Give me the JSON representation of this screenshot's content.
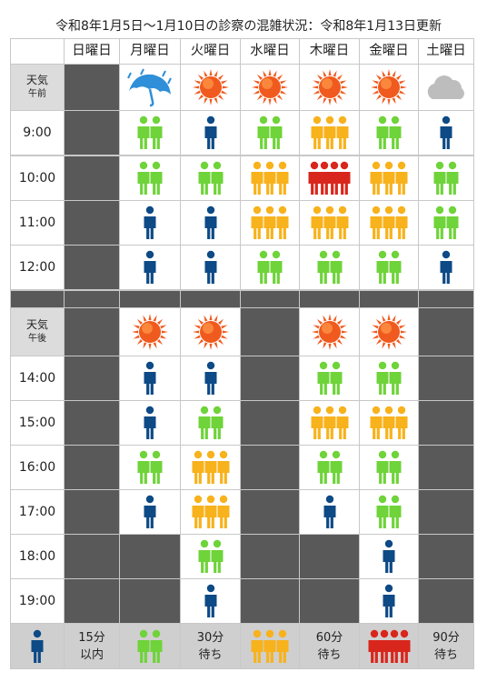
{
  "title": "令和8年1月5日〜1月10日の診察の混雑状況：令和8年1月13日更新",
  "days": [
    "日曜日",
    "月曜日",
    "火曜日",
    "水曜日",
    "木曜日",
    "金曜日",
    "土曜日"
  ],
  "am": {
    "weather_label": "天気",
    "period_label": "午前",
    "weather": [
      "closed",
      "rain-umbrella-icon",
      "sun-icon",
      "sun-icon",
      "sun-icon",
      "sun-icon",
      "cloud-icon"
    ],
    "slots": [
      {
        "time": "9:00",
        "levels": [
          "closed",
          2,
          1,
          2,
          3,
          2,
          1
        ]
      },
      {
        "time": "10:00",
        "levels": [
          "closed",
          2,
          2,
          3,
          4,
          3,
          2
        ]
      },
      {
        "time": "11:00",
        "levels": [
          "closed",
          1,
          1,
          3,
          3,
          3,
          2
        ]
      },
      {
        "time": "12:00",
        "levels": [
          "closed",
          1,
          1,
          2,
          2,
          2,
          1
        ]
      }
    ]
  },
  "pm": {
    "weather_label": "天気",
    "period_label": "午後",
    "weather": [
      "closed",
      "sun-icon",
      "sun-icon",
      "closed",
      "sun-icon",
      "sun-icon",
      "closed"
    ],
    "slots": [
      {
        "time": "14:00",
        "levels": [
          "closed",
          1,
          1,
          "closed",
          2,
          2,
          "closed"
        ]
      },
      {
        "time": "15:00",
        "levels": [
          "closed",
          1,
          2,
          "closed",
          3,
          3,
          "closed"
        ]
      },
      {
        "time": "16:00",
        "levels": [
          "closed",
          2,
          3,
          "closed",
          2,
          2,
          "closed"
        ]
      },
      {
        "time": "17:00",
        "levels": [
          "closed",
          1,
          3,
          "closed",
          1,
          2,
          "closed"
        ]
      },
      {
        "time": "18:00",
        "levels": [
          "closed",
          "closed",
          2,
          "closed",
          "closed",
          1,
          "closed"
        ]
      },
      {
        "time": "19:00",
        "levels": [
          "closed",
          "closed",
          1,
          "closed",
          "closed",
          1,
          "closed"
        ]
      }
    ]
  },
  "legend": [
    {
      "level": 1,
      "line1": "15分",
      "line2": "以内"
    },
    {
      "level": 2,
      "line1": "30分",
      "line2": "待ち"
    },
    {
      "level": 3,
      "line1": "60分",
      "line2": "待ち"
    },
    {
      "level": 4,
      "line1": "90分",
      "line2": "待ち"
    }
  ],
  "colors": {
    "level1": "#0d4a86",
    "level2": "#6fd33a",
    "level3": "#f7b21c",
    "level4": "#d9261c",
    "closed": "#595959",
    "sun": "#f05a1e",
    "umbrella": "#2f8fd8",
    "cloud": "#bdbdbd"
  }
}
